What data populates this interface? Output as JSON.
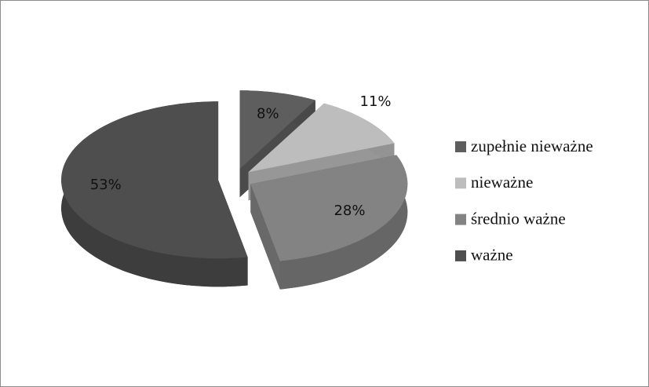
{
  "chart_data": {
    "type": "pie3d",
    "categories": [
      "zupełnie nieważne",
      "nieważne",
      "średnio ważne",
      "ważne"
    ],
    "values": [
      8,
      11,
      28,
      53
    ],
    "value_labels": [
      "8%",
      "11%",
      "28%",
      "53%"
    ],
    "colors": [
      "#5e5e5e",
      "#bdbdbd",
      "#838383",
      "#4e4e4e"
    ],
    "legend": "right"
  }
}
